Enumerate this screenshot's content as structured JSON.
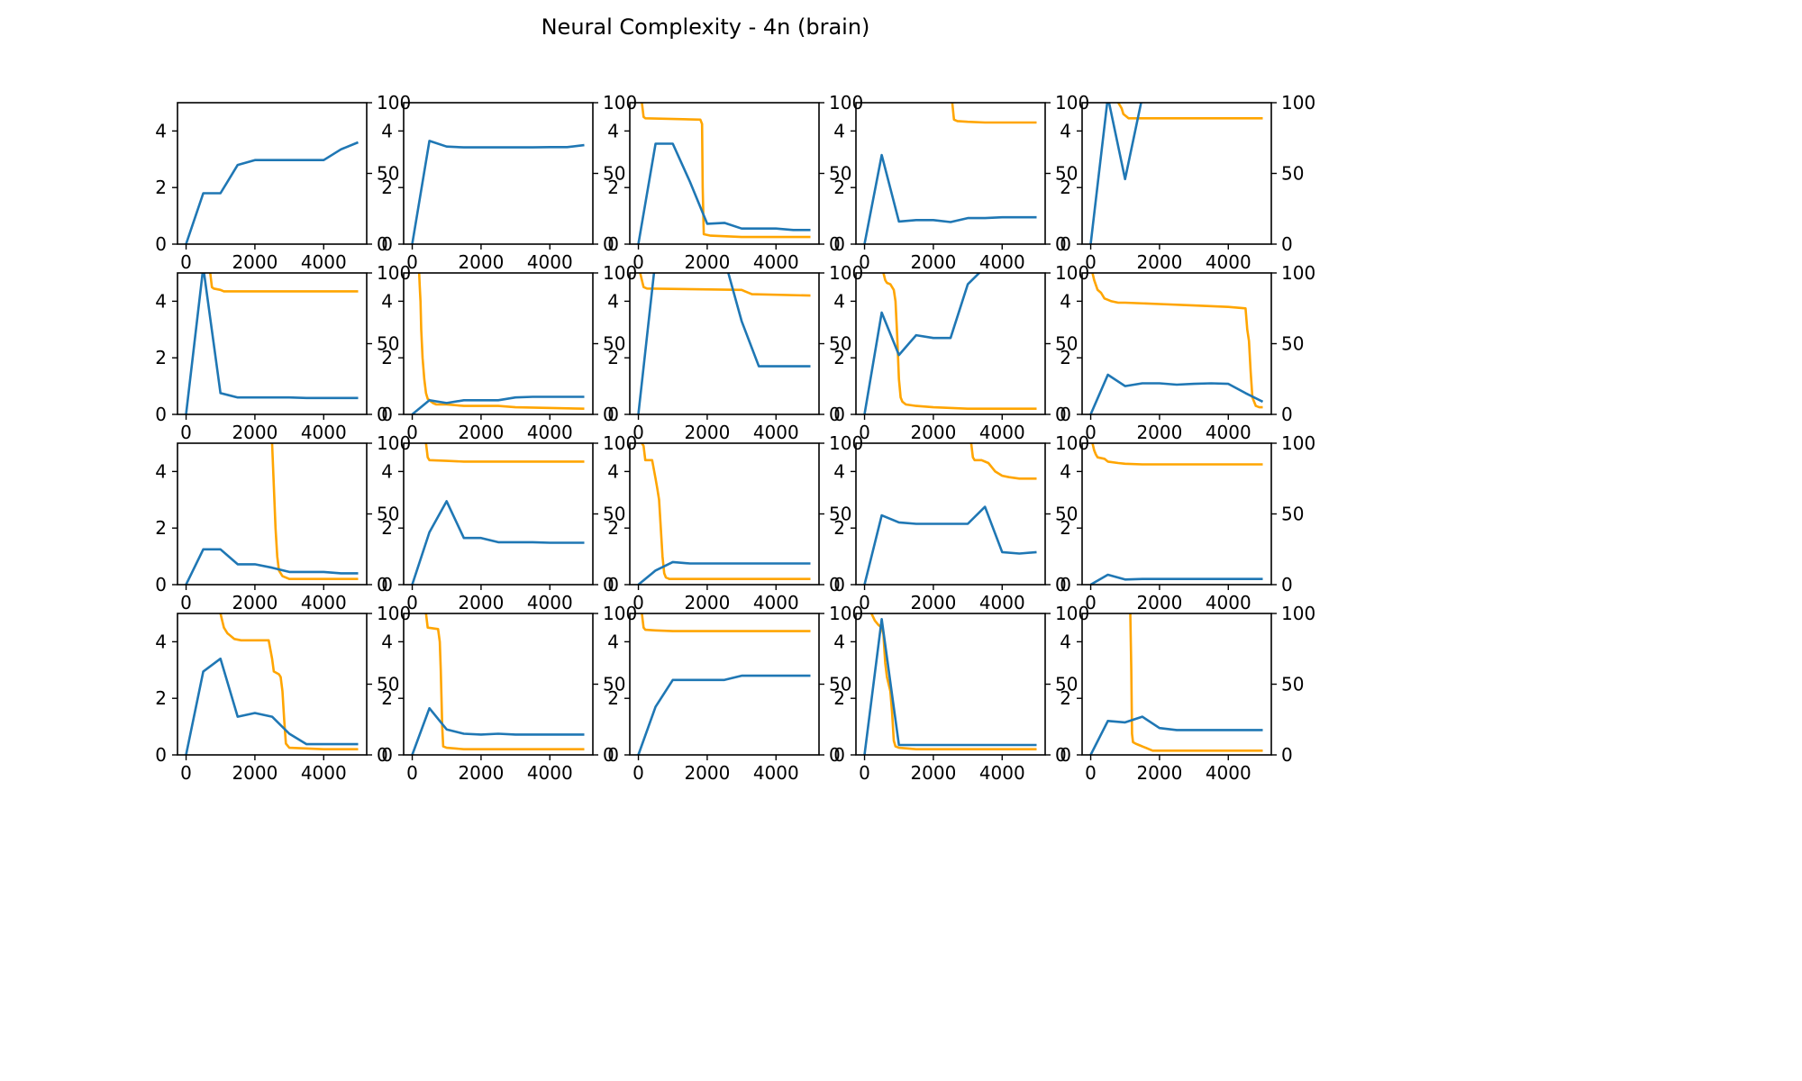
{
  "title": "Neural Complexity - 4n (brain)",
  "colors": {
    "complexity": "#1f77b4",
    "secondary": "#ffa500"
  },
  "chart_data": {
    "type": "line",
    "grid": false,
    "layout": "4x5 grid of twin-axis line plots",
    "xlim": [
      -250,
      5250
    ],
    "xticks": [
      0,
      2000,
      4000
    ],
    "ylim_left": [
      0,
      5
    ],
    "yticks_left": [
      0,
      2,
      4
    ],
    "ylim_right": [
      0,
      100
    ],
    "yticks_right": [
      0,
      50,
      100
    ],
    "subplots": [
      {
        "x": [
          0,
          500,
          1000,
          1500,
          2000,
          2500,
          3000,
          3500,
          4000,
          4500,
          5000
        ],
        "y": [
          0,
          1.8,
          1.8,
          2.8,
          2.97,
          2.97,
          2.97,
          2.97,
          2.97,
          3.35,
          3.6
        ],
        "y2": null
      },
      {
        "x": [
          0,
          500,
          1000,
          1500,
          2000,
          2500,
          3000,
          3500,
          4000,
          4500,
          5000
        ],
        "y": [
          0,
          3.65,
          3.45,
          3.42,
          3.42,
          3.42,
          3.42,
          3.42,
          3.43,
          3.43,
          3.5
        ],
        "y2": null
      },
      {
        "x": [
          0,
          500,
          1000,
          1500,
          2000,
          2500,
          3000,
          3500,
          4000,
          4500,
          5000
        ],
        "y": [
          0,
          3.55,
          3.55,
          2.2,
          0.72,
          0.75,
          0.55,
          0.55,
          0.55,
          0.5,
          0.5
        ],
        "y2": {
          "x": [
            100,
            150,
            200,
            1800,
            1850,
            1870,
            1900,
            2100,
            3000,
            5000
          ],
          "y": [
            100,
            90,
            89,
            88,
            85,
            40,
            7,
            6,
            5,
            5
          ]
        }
      },
      {
        "x": [
          0,
          500,
          1000,
          1500,
          2000,
          2500,
          3000,
          3500,
          4000,
          4500,
          5000
        ],
        "y": [
          0,
          3.15,
          0.8,
          0.85,
          0.85,
          0.78,
          0.92,
          0.92,
          0.95,
          0.95,
          0.95
        ],
        "y2": {
          "x": [
            2550,
            2600,
            2700,
            3000,
            3500,
            5000
          ],
          "y": [
            100,
            88,
            87,
            86.5,
            86,
            86
          ]
        }
      },
      {
        "x": [
          0,
          500,
          1000,
          1500,
          2000,
          2500,
          3000,
          3500,
          4000,
          4500,
          5000
        ],
        "y": [
          0,
          5.2,
          2.3,
          5.2,
          5.5,
          5.5,
          5.5,
          5.5,
          5.5,
          5.5,
          5.5
        ],
        "y2": {
          "x": [
            800,
            850,
            900,
            950,
            1000,
            1100,
            1500,
            5000
          ],
          "y": [
            100,
            98,
            96,
            92,
            91,
            89,
            89,
            89
          ]
        }
      },
      {
        "x": [
          0,
          500,
          1000,
          1500,
          2000,
          2500,
          3000,
          3500,
          4000,
          4500,
          5000
        ],
        "y": [
          0,
          5.2,
          0.75,
          0.6,
          0.6,
          0.6,
          0.6,
          0.58,
          0.58,
          0.58,
          0.58
        ],
        "y2": {
          "x": [
            700,
            750,
            800,
            1000,
            1100,
            1500,
            5000
          ],
          "y": [
            100,
            90,
            89,
            88,
            87,
            87,
            87
          ]
        }
      },
      {
        "x": [
          0,
          500,
          1000,
          1500,
          2000,
          2500,
          3000,
          3500,
          4000,
          4500,
          5000
        ],
        "y": [
          0,
          0.5,
          0.4,
          0.5,
          0.5,
          0.5,
          0.6,
          0.62,
          0.62,
          0.62,
          0.62
        ],
        "y2": {
          "x": [
            200,
            220,
            240,
            260,
            300,
            350,
            400,
            450,
            500,
            600,
            700,
            1000,
            1500,
            2000,
            2500,
            3000,
            5000
          ],
          "y": [
            100,
            90,
            80,
            60,
            40,
            25,
            15,
            11,
            10,
            8,
            7,
            7,
            6,
            6,
            6,
            5,
            4
          ]
        }
      },
      {
        "x": [
          0,
          500,
          1000,
          1500,
          2000,
          2500,
          3000,
          3500,
          4000,
          4500,
          5000
        ],
        "y": [
          0,
          5.5,
          5.5,
          5.5,
          5.5,
          5.5,
          3.3,
          1.7,
          1.7,
          1.7,
          1.7
        ],
        "y2": {
          "x": [
            50,
            100,
            150,
            250,
            3000,
            3100,
            3300,
            5000
          ],
          "y": [
            100,
            95,
            90,
            89,
            88,
            87,
            85,
            84
          ]
        }
      },
      {
        "x": [
          0,
          500,
          1000,
          1500,
          2000,
          2500,
          3000,
          3500,
          4000,
          4500,
          5000
        ],
        "y": [
          0,
          3.6,
          2.1,
          2.8,
          2.7,
          2.7,
          4.6,
          5.2,
          5.3,
          5.3,
          5.3
        ],
        "y2": {
          "x": [
            550,
            600,
            650,
            750,
            850,
            900,
            950,
            1000,
            1050,
            1100,
            1200,
            1500,
            2000,
            3000,
            5000
          ],
          "y": [
            100,
            95,
            93,
            92,
            88,
            80,
            55,
            25,
            12,
            9,
            7,
            6,
            5,
            4,
            4
          ]
        }
      },
      {
        "x": [
          0,
          500,
          1000,
          1500,
          2000,
          2500,
          3000,
          3500,
          4000,
          4500,
          5000
        ],
        "y": [
          0,
          1.4,
          1.0,
          1.1,
          1.1,
          1.05,
          1.08,
          1.1,
          1.08,
          0.75,
          0.45
        ],
        "y2": {
          "x": [
            50,
            100,
            200,
            300,
            400,
            500,
            600,
            800,
            1000,
            2000,
            3000,
            4000,
            4500,
            4550,
            4600,
            4650,
            4700,
            4800,
            4900,
            5000
          ],
          "y": [
            100,
            95,
            88,
            86,
            82,
            81,
            80,
            79,
            79,
            78,
            77,
            76,
            75,
            60,
            52,
            30,
            12,
            6,
            5,
            5
          ]
        }
      },
      {
        "x": [
          0,
          500,
          1000,
          1500,
          2000,
          2500,
          3000,
          3500,
          4000,
          4500,
          5000
        ],
        "y": [
          0,
          1.25,
          1.25,
          0.72,
          0.72,
          0.6,
          0.45,
          0.45,
          0.45,
          0.4,
          0.4
        ],
        "y2": {
          "x": [
            2500,
            2550,
            2600,
            2650,
            2700,
            2800,
            3000,
            5000
          ],
          "y": [
            100,
            70,
            40,
            20,
            10,
            6,
            4,
            4
          ]
        }
      },
      {
        "x": [
          0,
          500,
          1000,
          1500,
          2000,
          2500,
          3000,
          3500,
          4000,
          4500,
          5000
        ],
        "y": [
          0,
          1.85,
          2.95,
          1.65,
          1.65,
          1.5,
          1.5,
          1.5,
          1.48,
          1.48,
          1.48
        ],
        "y2": {
          "x": [
            400,
            450,
            500,
            1000,
            1500,
            5000
          ],
          "y": [
            100,
            90,
            88,
            87.5,
            87,
            87
          ]
        }
      },
      {
        "x": [
          0,
          500,
          1000,
          1500,
          2000,
          2500,
          3000,
          3500,
          4000,
          4500,
          5000
        ],
        "y": [
          0,
          0.5,
          0.8,
          0.75,
          0.75,
          0.75,
          0.75,
          0.75,
          0.75,
          0.75,
          0.75
        ],
        "y2": {
          "x": [
            100,
            150,
            200,
            400,
            500,
            550,
            600,
            650,
            700,
            750,
            800,
            900,
            1000,
            2000,
            5000
          ],
          "y": [
            100,
            98,
            88,
            88,
            75,
            68,
            60,
            40,
            20,
            8,
            5,
            4,
            4,
            4,
            4
          ]
        }
      },
      {
        "x": [
          0,
          500,
          1000,
          1500,
          2000,
          2500,
          3000,
          3500,
          4000,
          4500,
          5000
        ],
        "y": [
          0,
          2.45,
          2.2,
          2.15,
          2.15,
          2.15,
          2.15,
          2.75,
          1.15,
          1.1,
          1.15
        ],
        "y2": {
          "x": [
            3100,
            3150,
            3200,
            3400,
            3600,
            3700,
            3800,
            4000,
            4200,
            4500,
            5000
          ],
          "y": [
            100,
            90,
            88,
            88,
            86,
            83,
            80,
            77,
            76,
            75,
            75
          ]
        }
      },
      {
        "x": [
          0,
          500,
          1000,
          1500,
          2000,
          2500,
          3000,
          3500,
          4000,
          4500,
          5000
        ],
        "y": [
          0,
          0.35,
          0.18,
          0.2,
          0.2,
          0.2,
          0.2,
          0.2,
          0.2,
          0.2,
          0.2
        ],
        "y2": {
          "x": [
            50,
            100,
            150,
            200,
            400,
            500,
            800,
            1000,
            1500,
            2000,
            5000
          ],
          "y": [
            100,
            95,
            92,
            90,
            89,
            87,
            86,
            85.5,
            85,
            85,
            85
          ]
        }
      },
      {
        "x": [
          0,
          500,
          1000,
          1500,
          2000,
          2500,
          3000,
          3500,
          4000,
          4500,
          5000
        ],
        "y": [
          0,
          2.95,
          3.4,
          1.35,
          1.48,
          1.35,
          0.75,
          0.38,
          0.38,
          0.38,
          0.38
        ],
        "y2": {
          "x": [
            1000,
            1050,
            1100,
            1200,
            1300,
            1400,
            1600,
            2000,
            2400,
            2500,
            2550,
            2700,
            2750,
            2800,
            2850,
            2900,
            3000,
            4000,
            5000
          ],
          "y": [
            100,
            95,
            90,
            86,
            84,
            82,
            81,
            81,
            81,
            68,
            59,
            57,
            55,
            45,
            25,
            8,
            5,
            4,
            4
          ]
        }
      },
      {
        "x": [
          0,
          500,
          1000,
          1500,
          2000,
          2500,
          3000,
          3500,
          4000,
          4500,
          5000
        ],
        "y": [
          0,
          1.65,
          0.9,
          0.75,
          0.72,
          0.75,
          0.72,
          0.72,
          0.72,
          0.72,
          0.72
        ],
        "y2": {
          "x": [
            400,
            450,
            750,
            800,
            830,
            850,
            870,
            900,
            1000,
            1500,
            5000
          ],
          "y": [
            100,
            90,
            89,
            80,
            60,
            40,
            20,
            6,
            5,
            4,
            4
          ]
        }
      },
      {
        "x": [
          0,
          500,
          1000,
          1500,
          2000,
          2500,
          3000,
          3500,
          4000,
          4500,
          5000
        ],
        "y": [
          0,
          1.7,
          2.65,
          2.65,
          2.65,
          2.65,
          2.8,
          2.8,
          2.8,
          2.8,
          2.8
        ],
        "y2": {
          "x": [
            100,
            150,
            200,
            500,
            1000,
            2000,
            5000
          ],
          "y": [
            100,
            90,
            88.5,
            88,
            87.5,
            87.5,
            87.5
          ]
        }
      },
      {
        "x": [
          0,
          500,
          1000,
          1500,
          2000,
          2500,
          3000,
          3500,
          4000,
          4500,
          5000
        ],
        "y": [
          0,
          4.8,
          0.35,
          0.35,
          0.35,
          0.35,
          0.35,
          0.35,
          0.35,
          0.35,
          0.35
        ],
        "y2": {
          "x": [
            200,
            300,
            400,
            500,
            550,
            600,
            650,
            700,
            750,
            800,
            850,
            900,
            1000,
            1500,
            5000
          ],
          "y": [
            100,
            95,
            92,
            90,
            85,
            65,
            55,
            50,
            45,
            30,
            10,
            6,
            5,
            4,
            4
          ]
        }
      },
      {
        "x": [
          0,
          500,
          1000,
          1500,
          2000,
          2500,
          3000,
          3500,
          4000,
          4500,
          5000
        ],
        "y": [
          0,
          1.2,
          1.15,
          1.35,
          0.95,
          0.88,
          0.88,
          0.88,
          0.88,
          0.88,
          0.88
        ],
        "y2": {
          "x": [
            1150,
            1180,
            1200,
            1230,
            1300,
            1400,
            1500,
            1600,
            1800,
            2000,
            3000,
            5000
          ],
          "y": [
            100,
            60,
            15,
            9,
            8,
            7,
            6,
            5,
            3,
            3,
            3,
            3
          ]
        }
      }
    ]
  }
}
